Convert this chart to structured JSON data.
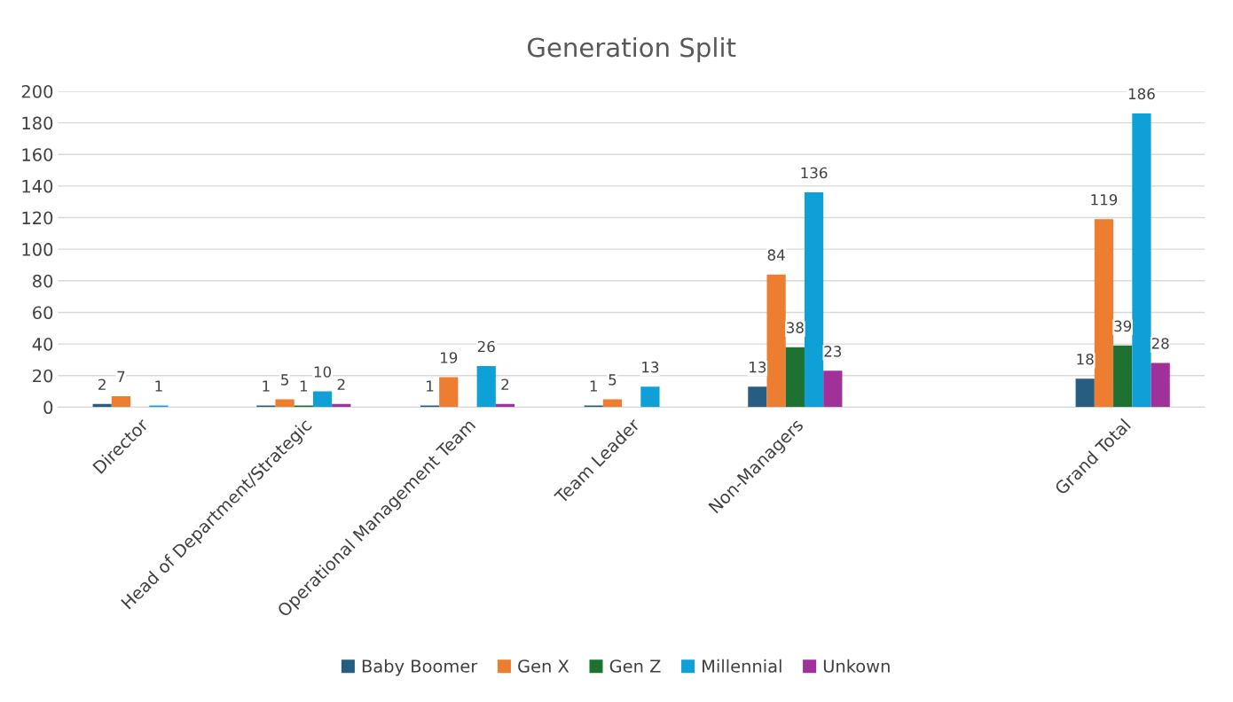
{
  "chart_data": {
    "type": "bar",
    "title": "Generation Split",
    "categories": [
      "Director",
      "Head of Department/Strategic",
      "Operational Management Team",
      "Team Leader",
      "Non-Managers",
      null,
      "Grand Total"
    ],
    "series": [
      {
        "name": "Baby Boomer",
        "color": "#255e80",
        "values": [
          2,
          1,
          1,
          1,
          13,
          null,
          18
        ]
      },
      {
        "name": "Gen X",
        "color": "#ed7d31",
        "values": [
          7,
          5,
          19,
          5,
          84,
          null,
          119
        ]
      },
      {
        "name": "Gen Z",
        "color": "#1e7130",
        "values": [
          null,
          1,
          null,
          null,
          38,
          null,
          39
        ]
      },
      {
        "name": "Millennial",
        "color": "#10a0d8",
        "values": [
          1,
          10,
          26,
          13,
          136,
          null,
          186
        ]
      },
      {
        "name": "Unkown",
        "color": "#a0309a",
        "values": [
          null,
          2,
          2,
          null,
          23,
          null,
          28
        ]
      }
    ],
    "ylim": [
      0,
      200
    ],
    "yticks": [
      0,
      20,
      40,
      60,
      80,
      100,
      120,
      140,
      160,
      180,
      200
    ],
    "grid": "y",
    "legend": "bottom",
    "data_labels": true
  }
}
